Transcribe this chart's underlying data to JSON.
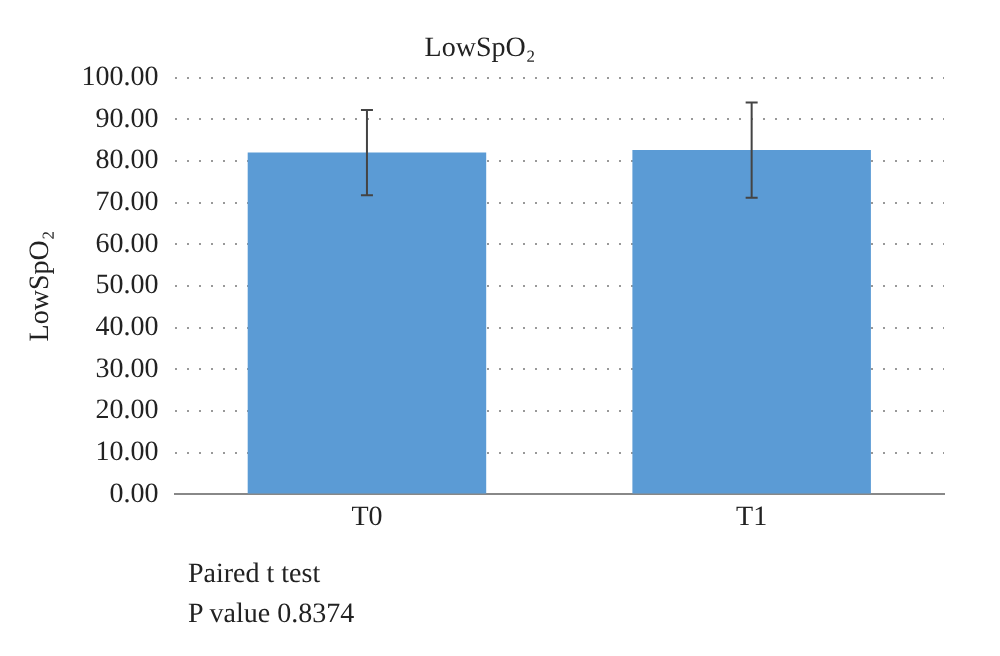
{
  "chart_data": {
    "type": "bar",
    "title": "LowSpO₂",
    "ylabel": "LowSpO₂",
    "categories": [
      "T0",
      "T1"
    ],
    "values": [
      82.0,
      82.6
    ],
    "errors": [
      [
        71.8,
        92.2
      ],
      [
        71.2,
        94.0
      ]
    ],
    "color": "#5b9bd5",
    "ylim": [
      0,
      100
    ],
    "yticks": [
      {
        "value": 0,
        "label": "0.00"
      },
      {
        "value": 10,
        "label": "10.00"
      },
      {
        "value": 20,
        "label": "20.00"
      },
      {
        "value": 30,
        "label": "30.00"
      },
      {
        "value": 40,
        "label": "40.00"
      },
      {
        "value": 50,
        "label": "50.00"
      },
      {
        "value": 60,
        "label": "60.00"
      },
      {
        "value": 70,
        "label": "70.00"
      },
      {
        "value": 80,
        "label": "80.00"
      },
      {
        "value": 90,
        "label": "90.00"
      },
      {
        "value": 100,
        "label": "100.00"
      }
    ],
    "grid": "y",
    "annotations": [
      "Paired t test",
      "P value 0.8374"
    ]
  }
}
